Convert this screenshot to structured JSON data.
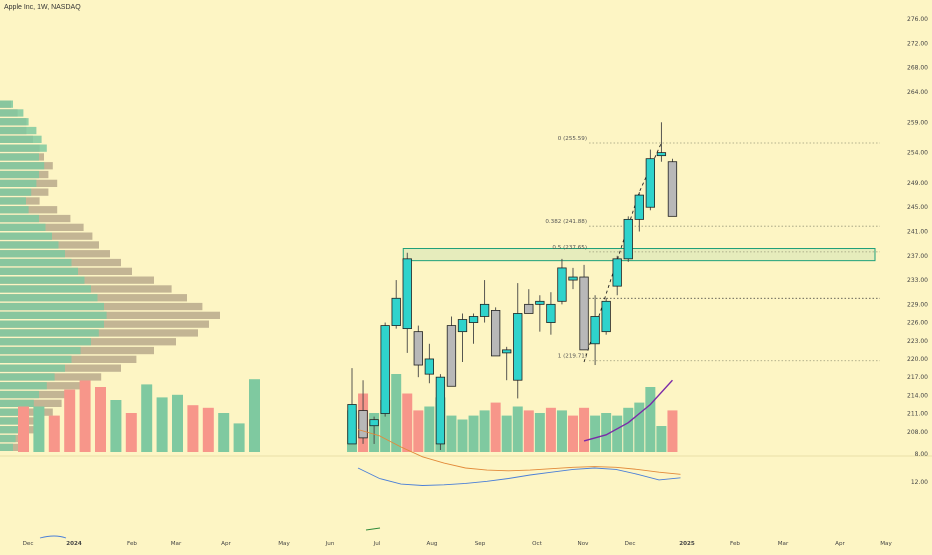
{
  "header": {
    "title": "Apple Inc, 1W, NASDAQ"
  },
  "colors": {
    "background": "#fdf5c4",
    "up": "#2fd3cc",
    "down": "#b8b8b8",
    "volume_up": "#7fc9a0",
    "volume_down": "#f7968a",
    "profile_up": "#7fc9a0",
    "profile_down": "#b9a98c",
    "fib": "#9a9a7a",
    "zone": "#1fa07a",
    "ma": "#7b2aa8",
    "osc_fast": "#4a7fd8",
    "osc_slow": "#e28a3a"
  },
  "chart_data": [
    {
      "type": "candlestick",
      "title": "Apple Inc, 1W, NASDAQ",
      "y_ticks": [
        "208.00",
        "211.00",
        "214.00",
        "217.00",
        "220.00",
        "223.00",
        "226.00",
        "229.00",
        "233.00",
        "237.00",
        "241.00",
        "245.00",
        "249.00",
        "254.00",
        "259.00",
        "264.00",
        "268.00",
        "272.00",
        "276.00"
      ],
      "x_ticks": [
        "Dec",
        "2024",
        "Feb",
        "Mar",
        "Apr",
        "May",
        "Jun",
        "Jul",
        "Aug",
        "Sep",
        "Oct",
        "Nov",
        "Dec",
        "2025",
        "Feb",
        "Mar",
        "Apr",
        "May"
      ],
      "candles": [
        {
          "o": 206.0,
          "h": 218.5,
          "l": 206.0,
          "c": 212.5
        },
        {
          "o": 211.5,
          "h": 216.5,
          "l": 206.0,
          "c": 207.0
        },
        {
          "o": 209.0,
          "h": 210.5,
          "l": 206.0,
          "c": 210.0
        },
        {
          "o": 211.0,
          "h": 226.0,
          "l": 210.5,
          "c": 225.5
        },
        {
          "o": 225.5,
          "h": 233.0,
          "l": 225.0,
          "c": 230.0
        },
        {
          "o": 225.0,
          "h": 237.5,
          "l": 221.0,
          "c": 236.5
        },
        {
          "o": 224.5,
          "h": 225.5,
          "l": 217.0,
          "c": 219.0
        },
        {
          "o": 217.5,
          "h": 222.5,
          "l": 216.0,
          "c": 220.0
        },
        {
          "o": 206.0,
          "h": 217.5,
          "l": 205.0,
          "c": 217.0
        },
        {
          "o": 225.5,
          "h": 227.0,
          "l": 215.5,
          "c": 215.5
        },
        {
          "o": 224.5,
          "h": 227.5,
          "l": 219.5,
          "c": 226.5
        },
        {
          "o": 226.0,
          "h": 227.5,
          "l": 222.5,
          "c": 227.0
        },
        {
          "o": 227.0,
          "h": 233.0,
          "l": 226.0,
          "c": 229.0
        },
        {
          "o": 228.0,
          "h": 228.5,
          "l": 220.5,
          "c": 220.5
        },
        {
          "o": 221.0,
          "h": 222.0,
          "l": 216.5,
          "c": 221.5
        },
        {
          "o": 216.5,
          "h": 232.5,
          "l": 213.5,
          "c": 227.5
        },
        {
          "o": 229.0,
          "h": 231.5,
          "l": 227.5,
          "c": 227.5
        },
        {
          "o": 229.0,
          "h": 230.5,
          "l": 224.5,
          "c": 229.5
        },
        {
          "o": 226.0,
          "h": 231.0,
          "l": 224.0,
          "c": 229.0
        },
        {
          "o": 229.5,
          "h": 236.5,
          "l": 229.0,
          "c": 235.0
        },
        {
          "o": 233.0,
          "h": 235.0,
          "l": 231.5,
          "c": 233.5
        },
        {
          "o": 233.5,
          "h": 235.5,
          "l": 221.5,
          "c": 221.5
        },
        {
          "o": 222.5,
          "h": 230.5,
          "l": 219.0,
          "c": 227.0
        },
        {
          "o": 224.5,
          "h": 230.0,
          "l": 224.0,
          "c": 229.5
        },
        {
          "o": 232.0,
          "h": 237.0,
          "l": 230.5,
          "c": 236.5
        },
        {
          "o": 236.5,
          "h": 243.5,
          "l": 236.0,
          "c": 243.0
        },
        {
          "o": 243.0,
          "h": 247.5,
          "l": 241.0,
          "c": 247.0
        },
        {
          "o": 245.0,
          "h": 254.5,
          "l": 244.5,
          "c": 253.0
        },
        {
          "o": 253.5,
          "h": 259.0,
          "l": 252.5,
          "c": 254.0
        },
        {
          "o": 252.5,
          "h": 253.0,
          "l": 243.5,
          "c": 243.5
        }
      ],
      "volume": [
        {
          "v": 0.32,
          "up": true
        },
        {
          "v": 0.45,
          "up": false
        },
        {
          "v": 0.3,
          "up": true
        },
        {
          "v": 0.4,
          "up": true
        },
        {
          "v": 0.6,
          "up": true
        },
        {
          "v": 0.45,
          "up": false
        },
        {
          "v": 0.32,
          "up": false
        },
        {
          "v": 0.35,
          "up": true
        },
        {
          "v": 0.42,
          "up": true
        },
        {
          "v": 0.28,
          "up": true
        },
        {
          "v": 0.25,
          "up": true
        },
        {
          "v": 0.28,
          "up": true
        },
        {
          "v": 0.32,
          "up": true
        },
        {
          "v": 0.38,
          "up": false
        },
        {
          "v": 0.28,
          "up": true
        },
        {
          "v": 0.35,
          "up": true
        },
        {
          "v": 0.32,
          "up": false
        },
        {
          "v": 0.3,
          "up": true
        },
        {
          "v": 0.34,
          "up": false
        },
        {
          "v": 0.32,
          "up": true
        },
        {
          "v": 0.28,
          "up": false
        },
        {
          "v": 0.34,
          "up": false
        },
        {
          "v": 0.28,
          "up": true
        },
        {
          "v": 0.3,
          "up": true
        },
        {
          "v": 0.28,
          "up": true
        },
        {
          "v": 0.34,
          "up": true
        },
        {
          "v": 0.38,
          "up": true
        },
        {
          "v": 0.5,
          "up": true
        },
        {
          "v": 0.2,
          "up": true
        },
        {
          "v": 0.32,
          "up": false
        }
      ],
      "volume_early": [
        {
          "v": 0.35,
          "up": false
        },
        {
          "v": 0.35,
          "up": true
        },
        {
          "v": 0.28,
          "up": false
        },
        {
          "v": 0.48,
          "up": false
        },
        {
          "v": 0.55,
          "up": false
        },
        {
          "v": 0.5,
          "up": false
        },
        {
          "v": 0.4,
          "up": true
        },
        {
          "v": 0.3,
          "up": false
        },
        {
          "v": 0.52,
          "up": true
        },
        {
          "v": 0.42,
          "up": true
        },
        {
          "v": 0.44,
          "up": true
        },
        {
          "v": 0.36,
          "up": false
        },
        {
          "v": 0.34,
          "up": false
        },
        {
          "v": 0.3,
          "up": true
        },
        {
          "v": 0.22,
          "up": true
        },
        {
          "v": 0.56,
          "up": true
        }
      ],
      "moving_average": [
        {
          "i": 21,
          "p": 206.5
        },
        {
          "i": 23,
          "p": 207.5
        },
        {
          "i": 25,
          "p": 209.5
        },
        {
          "i": 27,
          "p": 212.5
        },
        {
          "i": 29,
          "p": 216.5
        }
      ],
      "fib_levels": [
        {
          "label": "0 (255.59)",
          "price": 255.59
        },
        {
          "label": "0.382 (241.88)",
          "price": 241.88
        },
        {
          "label": "0.5 (237.65)",
          "price": 237.65
        },
        {
          "label": "1 (219.71)",
          "price": 219.71
        }
      ],
      "extra_line_price": 230.0,
      "zone": {
        "top": 238.2,
        "bottom": 236.2
      },
      "profile": [
        {
          "up": 0.1,
          "down": 0.05
        },
        {
          "up": 0.18,
          "down": 0.08
        },
        {
          "up": 0.22,
          "down": 0.12
        },
        {
          "up": 0.28,
          "down": 0.12
        },
        {
          "up": 0.32,
          "down": 0.15
        },
        {
          "up": 0.36,
          "down": 0.18
        },
        {
          "up": 0.3,
          "down": 0.2
        },
        {
          "up": 0.34,
          "down": 0.24
        },
        {
          "up": 0.3,
          "down": 0.22
        },
        {
          "up": 0.28,
          "down": 0.26
        },
        {
          "up": 0.24,
          "down": 0.22
        },
        {
          "up": 0.2,
          "down": 0.18
        },
        {
          "up": 0.22,
          "down": 0.26
        },
        {
          "up": 0.3,
          "down": 0.32
        },
        {
          "up": 0.35,
          "down": 0.38
        },
        {
          "up": 0.4,
          "down": 0.42
        },
        {
          "up": 0.45,
          "down": 0.45
        },
        {
          "up": 0.5,
          "down": 0.5
        },
        {
          "up": 0.55,
          "down": 0.55
        },
        {
          "up": 0.6,
          "down": 0.6
        },
        {
          "up": 0.65,
          "down": 0.7
        },
        {
          "up": 0.7,
          "down": 0.78
        },
        {
          "up": 0.75,
          "down": 0.85
        },
        {
          "up": 0.8,
          "down": 0.92
        },
        {
          "up": 0.82,
          "down": 1.0
        },
        {
          "up": 0.8,
          "down": 0.95
        },
        {
          "up": 0.76,
          "down": 0.9
        },
        {
          "up": 0.7,
          "down": 0.8
        },
        {
          "up": 0.62,
          "down": 0.7
        },
        {
          "up": 0.55,
          "down": 0.62
        },
        {
          "up": 0.5,
          "down": 0.55
        },
        {
          "up": 0.42,
          "down": 0.46
        },
        {
          "up": 0.36,
          "down": 0.4
        },
        {
          "up": 0.3,
          "down": 0.34
        },
        {
          "up": 0.26,
          "down": 0.28
        },
        {
          "up": 0.22,
          "down": 0.24
        },
        {
          "up": 0.18,
          "down": 0.2
        },
        {
          "up": 0.14,
          "down": 0.16
        },
        {
          "up": 0.12,
          "down": 0.13
        },
        {
          "up": 0.1,
          "down": 0.11
        }
      ],
      "oscillator": {
        "y_ticks": [
          "12.00",
          "8.00"
        ],
        "fast": [
          10.0,
          11.5,
          12.3,
          12.5,
          12.4,
          12.2,
          11.9,
          11.5,
          11.0,
          10.6,
          10.2,
          10.0,
          10.2,
          10.9,
          11.7,
          11.4
        ],
        "slow": [
          4.5,
          5.4,
          7.0,
          8.4,
          9.3,
          10.0,
          10.3,
          10.4,
          10.3,
          10.1,
          9.9,
          9.8,
          9.9,
          10.2,
          10.6,
          10.9
        ]
      }
    }
  ]
}
